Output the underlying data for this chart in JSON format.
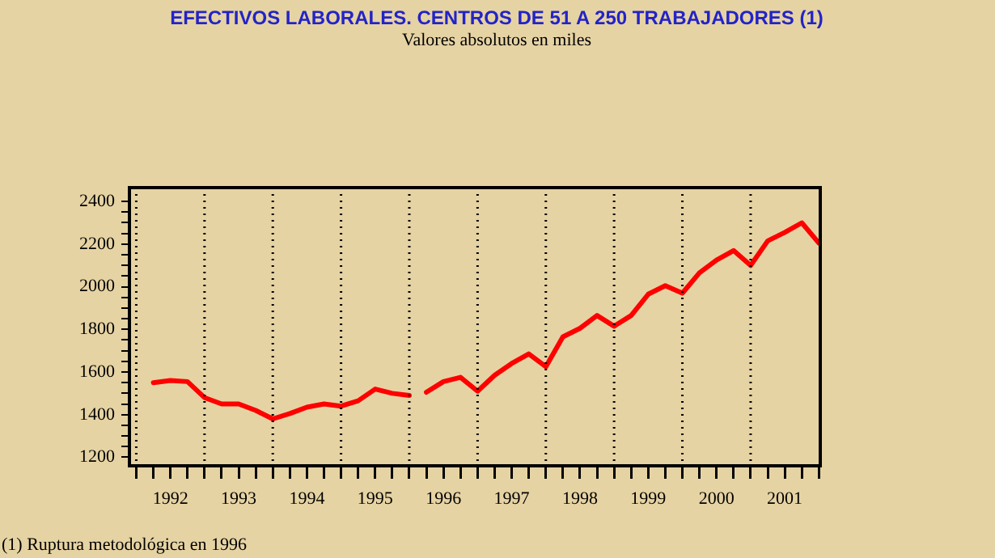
{
  "chart_data": {
    "type": "line",
    "title": "EFECTIVOS LABORALES. CENTROS DE 51 A 250 TRABAJADORES (1)",
    "subtitle": "Valores absolutos en miles",
    "annotations": [
      "(1) Ruptura metodológica en 1996"
    ],
    "xlim": [
      1991.9,
      2002.02
    ],
    "xticks": [
      {
        "value": 1992,
        "label": null
      },
      {
        "value": 1992.25,
        "label": null
      },
      {
        "value": 1992.5,
        "label": "1992"
      },
      {
        "value": 1992.75,
        "label": null
      },
      {
        "value": 1993,
        "label": null
      },
      {
        "value": 1993.25,
        "label": null
      },
      {
        "value": 1993.5,
        "label": "1993"
      },
      {
        "value": 1993.75,
        "label": null
      },
      {
        "value": 1994,
        "label": null
      },
      {
        "value": 1994.25,
        "label": null
      },
      {
        "value": 1994.5,
        "label": "1994"
      },
      {
        "value": 1994.75,
        "label": null
      },
      {
        "value": 1995,
        "label": null
      },
      {
        "value": 1995.25,
        "label": null
      },
      {
        "value": 1995.5,
        "label": "1995"
      },
      {
        "value": 1995.75,
        "label": null
      },
      {
        "value": 1996,
        "label": null
      },
      {
        "value": 1996.25,
        "label": null
      },
      {
        "value": 1996.5,
        "label": "1996"
      },
      {
        "value": 1996.75,
        "label": null
      },
      {
        "value": 1997,
        "label": null
      },
      {
        "value": 1997.25,
        "label": null
      },
      {
        "value": 1997.5,
        "label": "1997"
      },
      {
        "value": 1997.75,
        "label": null
      },
      {
        "value": 1998,
        "label": null
      },
      {
        "value": 1998.25,
        "label": null
      },
      {
        "value": 1998.5,
        "label": "1998"
      },
      {
        "value": 1998.75,
        "label": null
      },
      {
        "value": 1999,
        "label": null
      },
      {
        "value": 1999.25,
        "label": null
      },
      {
        "value": 1999.5,
        "label": "1999"
      },
      {
        "value": 1999.75,
        "label": null
      },
      {
        "value": 2000,
        "label": null
      },
      {
        "value": 2000.25,
        "label": null
      },
      {
        "value": 2000.5,
        "label": "2000"
      },
      {
        "value": 2000.75,
        "label": null
      },
      {
        "value": 2001,
        "label": null
      },
      {
        "value": 2001.25,
        "label": null
      },
      {
        "value": 2001.5,
        "label": "2001"
      },
      {
        "value": 2001.75,
        "label": null
      },
      {
        "value": 2002,
        "label": null
      }
    ],
    "ylim": [
      1160,
      2465
    ],
    "yticks": [
      1200,
      {
        "value": 1250,
        "label": null
      },
      {
        "value": 1300,
        "label": null
      },
      {
        "value": 1350,
        "label": null
      },
      1400,
      {
        "value": 1450,
        "label": null
      },
      {
        "value": 1500,
        "label": null
      },
      {
        "value": 1550,
        "label": null
      },
      1600,
      {
        "value": 1650,
        "label": null
      },
      {
        "value": 1700,
        "label": null
      },
      {
        "value": 1750,
        "label": null
      },
      1800,
      {
        "value": 1850,
        "label": null
      },
      {
        "value": 1900,
        "label": null
      },
      {
        "value": 1950,
        "label": null
      },
      2000,
      {
        "value": 2050,
        "label": null
      },
      {
        "value": 2100,
        "label": null
      },
      {
        "value": 2150,
        "label": null
      },
      2200,
      {
        "value": 2250,
        "label": null
      },
      {
        "value": 2300,
        "label": null
      },
      {
        "value": 2350,
        "label": null
      },
      2400
    ],
    "ref_lines": [
      {
        "axis": "x",
        "value": 1992,
        "line_style": "dotted",
        "color": "#000000"
      },
      {
        "axis": "x",
        "value": 1993,
        "line_style": "dotted",
        "color": "#000000"
      },
      {
        "axis": "x",
        "value": 1994,
        "line_style": "dotted",
        "color": "#000000"
      },
      {
        "axis": "x",
        "value": 1995,
        "line_style": "dotted",
        "color": "#000000"
      },
      {
        "axis": "x",
        "value": 1996,
        "line_style": "dotted",
        "color": "#000000"
      },
      {
        "axis": "x",
        "value": 1997,
        "line_style": "dotted",
        "color": "#000000"
      },
      {
        "axis": "x",
        "value": 1998,
        "line_style": "dotted",
        "color": "#000000"
      },
      {
        "axis": "x",
        "value": 1999,
        "line_style": "dotted",
        "color": "#000000"
      },
      {
        "axis": "x",
        "value": 2000,
        "line_style": "dotted",
        "color": "#000000"
      },
      {
        "axis": "x",
        "value": 2001,
        "line_style": "dotted",
        "color": "#000000"
      }
    ],
    "grid": false,
    "legend": false,
    "marker": "none",
    "line_style": "solid",
    "series": [
      {
        "color": "#ff0000",
        "x": [
          1992.25,
          1992.5,
          1992.75,
          1993,
          1993.25,
          1993.5,
          1993.75,
          1994,
          1994.25,
          1994.5,
          1994.75,
          1995,
          1995.25,
          1995.5,
          1995.75,
          1996
        ],
        "values": [
          1550,
          1560,
          1555,
          1480,
          1450,
          1450,
          1420,
          1380,
          1405,
          1435,
          1450,
          1440,
          1465,
          1520,
          1500,
          1490
        ]
      },
      {
        "color": "#ff0000",
        "x": [
          1996.25,
          1996.5,
          1996.75,
          1997,
          1997.25,
          1997.5,
          1997.75,
          1998,
          1998.25,
          1998.5,
          1998.75,
          1999,
          1999.25,
          1999.5,
          1999.75,
          2000,
          2000.25,
          2000.5,
          2000.75,
          2001,
          2001.25,
          2001.5,
          2001.75,
          2002
        ],
        "values": [
          1505,
          1555,
          1575,
          1510,
          1585,
          1640,
          1685,
          1625,
          1765,
          1805,
          1865,
          1815,
          1865,
          1965,
          2005,
          1970,
          2065,
          2125,
          2170,
          2100,
          2215,
          2255,
          2300,
          2205
        ]
      }
    ]
  }
}
